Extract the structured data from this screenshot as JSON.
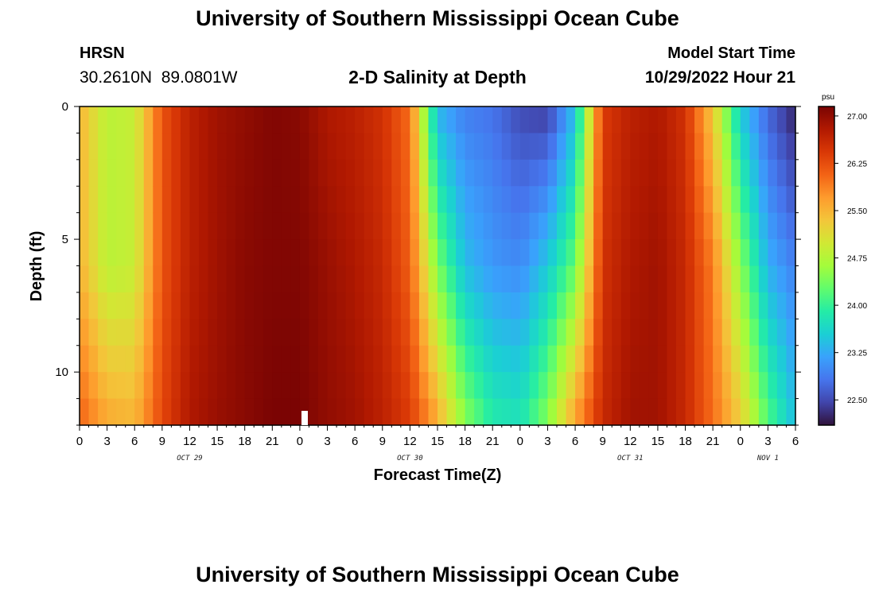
{
  "header": {
    "title": "University of Southern Mississippi Ocean Cube",
    "station": "HRSN",
    "coords": "30.2610N  89.0801W",
    "subtitle": "2-D Salinity at Depth",
    "model_label": "Model Start Time",
    "model_time": "10/29/2022 Hour 21"
  },
  "footer": {
    "title": "University of Southern Mississippi Ocean Cube"
  },
  "chart_data": {
    "type": "heatmap",
    "title": "2-D Salinity at Depth",
    "xlabel": "Forecast Time(Z)",
    "ylabel": "Depth (ft)",
    "x_tick_labels": [
      "0",
      "3",
      "6",
      "9",
      "12",
      "15",
      "18",
      "21",
      "0",
      "3",
      "6",
      "9",
      "12",
      "15",
      "18",
      "21",
      "0",
      "3",
      "6",
      "9",
      "12",
      "15",
      "18",
      "21",
      "0",
      "3",
      "6"
    ],
    "x_date_labels": [
      "OCT 29",
      "OCT 30",
      "OCT 31",
      "NOV 1"
    ],
    "x_range_hours": [
      0,
      78
    ],
    "y_tick_labels": [
      "0",
      "5",
      "10"
    ],
    "ylim": [
      0,
      12
    ],
    "colorbar": {
      "unit": "psu",
      "range": [
        22.1,
        27.15
      ],
      "tick_labels": [
        "27.00",
        "26.25",
        "25.50",
        "24.75",
        "24.00",
        "23.25",
        "22.50"
      ],
      "tick_values": [
        27.0,
        26.25,
        25.5,
        24.75,
        24.0,
        23.25,
        22.5
      ]
    },
    "colormap": [
      "#30123b",
      "#4145ab",
      "#4675ed",
      "#39a2fc",
      "#1bcfd4",
      "#24eca6",
      "#61fc6c",
      "#a4fc3b",
      "#d1e834",
      "#f3c63a",
      "#fe9b2d",
      "#f36315",
      "#d93806",
      "#b11901",
      "#7a0403"
    ],
    "time_hours": [
      0,
      3,
      6,
      9,
      12,
      15,
      18,
      21,
      24,
      27,
      30,
      33,
      36,
      39,
      42,
      45,
      48,
      51,
      54,
      57,
      60,
      63,
      66,
      69,
      72,
      75,
      78
    ],
    "depth_ft": [
      0,
      6,
      12
    ],
    "salinity_psu": [
      [
        25.5,
        24.8,
        24.9,
        26.2,
        26.7,
        26.9,
        27.0,
        27.1,
        27.05,
        26.8,
        26.7,
        26.5,
        26.0,
        23.3,
        22.9,
        22.8,
        22.5,
        22.4,
        23.4,
        26.4,
        26.7,
        26.8,
        26.5,
        25.3,
        23.5,
        22.7,
        22.2
      ],
      [
        25.5,
        24.8,
        24.9,
        26.2,
        26.7,
        26.9,
        27.05,
        27.1,
        27.1,
        26.95,
        26.8,
        26.6,
        26.1,
        24.4,
        23.4,
        23.1,
        23.0,
        23.5,
        24.3,
        26.5,
        26.8,
        26.9,
        26.6,
        25.9,
        24.5,
        23.3,
        22.9
      ],
      [
        26.1,
        25.6,
        25.5,
        26.3,
        26.8,
        26.95,
        27.05,
        27.15,
        27.15,
        27.0,
        26.9,
        26.7,
        26.4,
        25.6,
        24.5,
        23.9,
        23.8,
        24.5,
        25.7,
        26.6,
        26.9,
        26.9,
        26.6,
        26.0,
        25.3,
        24.2,
        23.4
      ]
    ],
    "annotations": []
  }
}
